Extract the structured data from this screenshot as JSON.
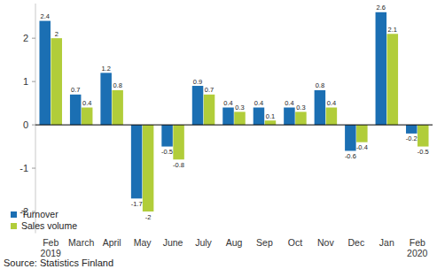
{
  "chart_data": {
    "type": "bar",
    "categories": [
      "Feb\n2019",
      "March",
      "April",
      "May",
      "June",
      "July",
      "Aug",
      "Sep",
      "Oct",
      "Nov",
      "Dec",
      "Jan",
      "Feb\n2020"
    ],
    "series": [
      {
        "name": "Turnover",
        "color": "#1b6fb3",
        "values": [
          2.4,
          0.7,
          1.2,
          -1.7,
          -0.5,
          0.9,
          0.4,
          0.4,
          0.4,
          0.8,
          -0.6,
          2.6,
          -0.2
        ]
      },
      {
        "name": "Sales volume",
        "color": "#b1cd3a",
        "values": [
          2.0,
          0.4,
          0.8,
          -2.0,
          -0.8,
          0.7,
          0.3,
          0.1,
          0.3,
          0.4,
          -0.4,
          2.1,
          -0.5
        ]
      }
    ],
    "ylim": [
      -2.5,
      2.8
    ],
    "yticks": [
      -2,
      -1,
      0,
      1,
      2
    ],
    "grid": false,
    "legend": "bottom-left",
    "data_labels": true,
    "source": "Source: Statistics Finland"
  }
}
